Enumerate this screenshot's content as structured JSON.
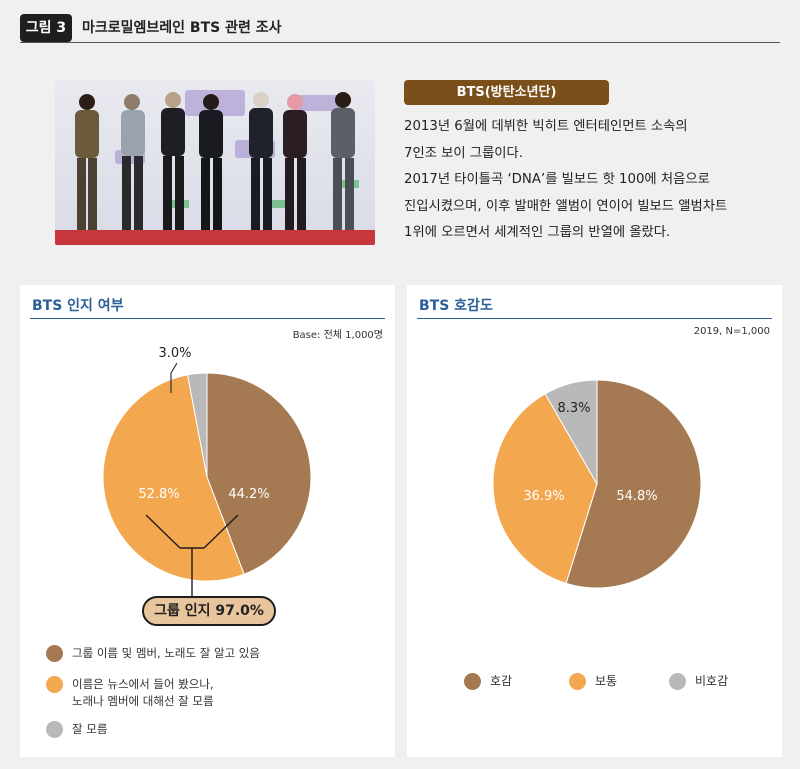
{
  "figure": {
    "badge": "그림 3",
    "title": "마크로밀엠브레인 BTS 관련 조사"
  },
  "info": {
    "badge": "BTS(방탄소년단)",
    "lines": [
      "2013년 6월에 데뷔한 빅히트 엔터테인먼트 소속의",
      "7인조 보이 그룹이다.",
      "2017년 타이틀곡 ‘DNA’를 빌보드 핫 100에 처음으로",
      "진입시켰으며, 이후 발매한 앨범이 연이어 빌보드 앨범차트",
      "1위에 오르면서 세계적인 그룹의 반열에 올랐다."
    ]
  },
  "colors": {
    "brown": "#a57a52",
    "orange": "#f3a74e",
    "gray": "#b9b9b9",
    "title_blue": "#2b5f97"
  },
  "chart_data": [
    {
      "type": "pie",
      "title": "BTS 인지 여부",
      "note": "Base: 전체 1,000명",
      "categories": [
        "그룹 이름 및 멤버, 노래도 잘 알고 있음",
        "이름은 뉴스에서 들어 봤으나, 노래나 멤버에 대해선 잘 모름",
        "잘 모름"
      ],
      "legend_lines": [
        [
          "그룹 이름 및 멤버, 노래도 잘 알고 있음"
        ],
        [
          "이름은 뉴스에서 들어 봤으나,",
          "노래나 멤버에 대해선 잘 모름"
        ],
        [
          "잘 모름"
        ]
      ],
      "values": [
        44.2,
        52.8,
        3.0
      ],
      "labels": [
        "44.2%",
        "52.8%",
        "3.0%"
      ],
      "colors": [
        "#a57a52",
        "#f3a74e",
        "#b9b9b9"
      ],
      "annotation": "그룹 인지 97.0%",
      "legend_position": "bottom"
    },
    {
      "type": "pie",
      "title": "BTS 호감도",
      "note": "2019, N=1,000",
      "categories": [
        "호감",
        "보통",
        "비호감"
      ],
      "values": [
        54.8,
        36.9,
        8.3
      ],
      "labels": [
        "54.8%",
        "36.9%",
        "8.3%"
      ],
      "colors": [
        "#a57a52",
        "#f3a74e",
        "#b9b9b9"
      ],
      "legend_position": "bottom"
    }
  ]
}
